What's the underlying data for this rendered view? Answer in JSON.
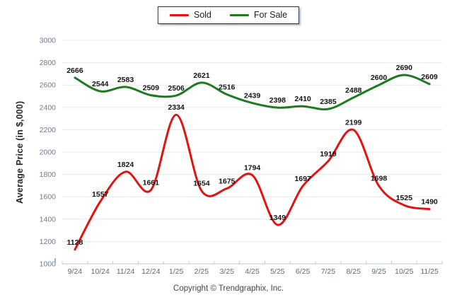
{
  "legend": {
    "items": [
      {
        "label": "Sold"
      },
      {
        "label": "For Sale"
      }
    ]
  },
  "footer": {
    "copyright": "Copyright © Trendgraphix, Inc."
  },
  "chart_data": {
    "type": "line",
    "title": "",
    "xlabel": "",
    "ylabel": "Average Price (in $,000)",
    "categories": [
      "9/24",
      "10/24",
      "11/24",
      "12/24",
      "1/25",
      "2/25",
      "3/25",
      "4/25",
      "5/25",
      "6/25",
      "7/25",
      "8/25",
      "9/25",
      "10/25",
      "11/25"
    ],
    "series": [
      {
        "name": "Sold",
        "color": "#e21313",
        "values": [
          1128,
          1557,
          1824,
          1661,
          2334,
          1654,
          1675,
          1794,
          1349,
          1697,
          1919,
          2199,
          1698,
          1525,
          1490
        ]
      },
      {
        "name": "For Sale",
        "color": "#1d7b1f",
        "values": [
          2666,
          2544,
          2583,
          2509,
          2506,
          2621,
          2516,
          2439,
          2398,
          2410,
          2385,
          2488,
          2600,
          2690,
          2609
        ]
      }
    ],
    "ylim": [
      1000,
      3000
    ],
    "y_ticks": [
      1000,
      1200,
      1400,
      1600,
      1800,
      2000,
      2200,
      2400,
      2600,
      2800,
      3000
    ],
    "grid": true,
    "data_labels": true,
    "legend_position": "top-center",
    "colors": {
      "gridline": "#e7e7e7",
      "axis_line": "#bccad6",
      "axis_edge_tick": "#8fb8d8",
      "y_tick_label": "#6e7a88",
      "x_tick_label": "#5d6a76",
      "data_label": "#141414"
    }
  }
}
